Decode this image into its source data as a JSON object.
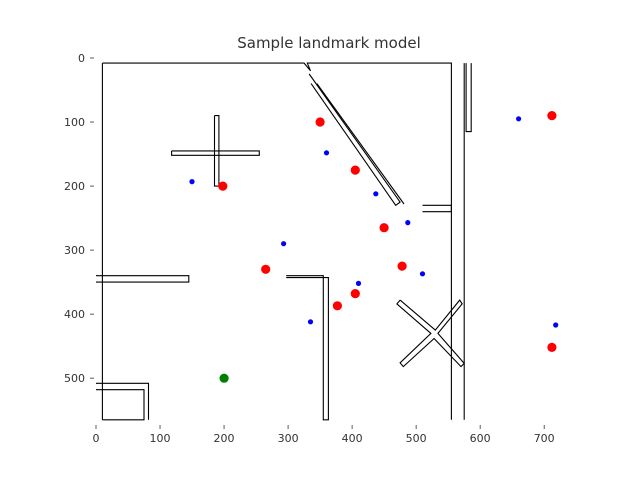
{
  "chart_data": {
    "type": "scatter",
    "title": "Sample landmark model",
    "xlabel": "",
    "ylabel": "",
    "xlim": [
      0,
      720
    ],
    "ylim": [
      0,
      570
    ],
    "y_inverted": true,
    "grid": false,
    "xticks": [
      "0",
      "100",
      "200",
      "300",
      "400",
      "500",
      "600",
      "700"
    ],
    "yticks": [
      "0",
      "100",
      "200",
      "300",
      "400",
      "500"
    ],
    "xtick_values": [
      0,
      100,
      200,
      300,
      400,
      500,
      600,
      700
    ],
    "ytick_values": [
      0,
      100,
      200,
      300,
      400,
      500
    ],
    "colors": {
      "red": "#ff0000",
      "blue": "#0000ff",
      "green": "#008000",
      "wall": "#000000"
    },
    "series": [
      {
        "color": "red",
        "x": [
          350,
          405,
          450,
          478,
          405,
          377,
          265,
          198,
          712,
          712
        ],
        "y": [
          100,
          175,
          265,
          325,
          368,
          387,
          330,
          200,
          90,
          452
        ]
      },
      {
        "color": "blue",
        "x": [
          360,
          437,
          487,
          510,
          410,
          335,
          293,
          150,
          660,
          718
        ],
        "y": [
          148,
          212,
          257,
          337,
          352,
          412,
          290,
          193,
          95,
          417
        ]
      },
      {
        "color": "green",
        "x": [
          200
        ],
        "y": [
          500
        ]
      }
    ],
    "walls": [
      {
        "points": [
          [
            10,
            8
          ],
          [
            325,
            8
          ],
          [
            335,
            20
          ],
          [
            330,
            8
          ],
          [
            555,
            8
          ],
          [
            555,
            565
          ],
          [
            555,
            8
          ]
        ]
      },
      {
        "points": [
          [
            10,
            8
          ],
          [
            10,
            565
          ]
        ]
      },
      {
        "points": [
          [
            10,
            565
          ],
          [
            75,
            565
          ],
          [
            75,
            518
          ],
          [
            0,
            518
          ]
        ]
      },
      {
        "points": [
          [
            0,
            508
          ],
          [
            82,
            508
          ],
          [
            82,
            565
          ],
          [
            82,
            508
          ]
        ]
      },
      {
        "points": [
          [
            0,
            340
          ],
          [
            145,
            340
          ],
          [
            145,
            350
          ],
          [
            0,
            350
          ]
        ]
      },
      {
        "points": [
          [
            297,
            340
          ],
          [
            355,
            340
          ],
          [
            355,
            565
          ],
          [
            363,
            565
          ],
          [
            363,
            343
          ],
          [
            297,
            343
          ]
        ]
      },
      {
        "points": [
          [
            185,
            90
          ],
          [
            185,
            200
          ],
          [
            192,
            200
          ],
          [
            192,
            90
          ],
          [
            185,
            90
          ]
        ]
      },
      {
        "points": [
          [
            118,
            145
          ],
          [
            255,
            145
          ],
          [
            255,
            152
          ],
          [
            118,
            152
          ],
          [
            118,
            145
          ]
        ]
      },
      {
        "points": [
          [
            333,
            25
          ],
          [
            475,
            225
          ],
          [
            468,
            230
          ],
          [
            336,
            40
          ]
        ]
      },
      {
        "points": [
          [
            345,
            40
          ],
          [
            481,
            228
          ]
        ]
      },
      {
        "points": [
          [
            578,
            8
          ],
          [
            578,
            115
          ],
          [
            586,
            115
          ],
          [
            586,
            8
          ]
        ]
      },
      {
        "points": [
          [
            510,
            230
          ],
          [
            555,
            230
          ],
          [
            555,
            240
          ],
          [
            510,
            240
          ]
        ]
      },
      {
        "points": [
          [
            475,
            378
          ],
          [
            530,
            425
          ],
          [
            568,
            378
          ],
          [
            572,
            384
          ],
          [
            534,
            430
          ],
          [
            575,
            477
          ],
          [
            570,
            482
          ],
          [
            528,
            438
          ],
          [
            480,
            482
          ],
          [
            475,
            476
          ],
          [
            523,
            430
          ],
          [
            470,
            384
          ],
          [
            475,
            378
          ]
        ]
      },
      {
        "points": [
          [
            575,
            565
          ],
          [
            575,
            8
          ]
        ]
      }
    ]
  }
}
